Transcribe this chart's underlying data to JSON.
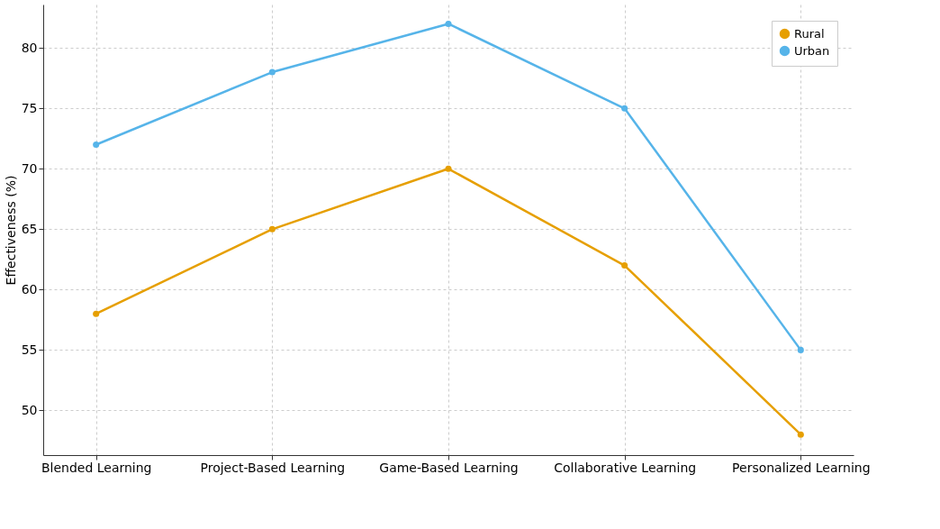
{
  "chart_data": {
    "type": "line",
    "ylabel": "Effectiveness (%)",
    "categories": [
      "Blended Learning",
      "Project-Based Learning",
      "Game-Based Learning",
      "Collaborative Learning",
      "Personalized Learning"
    ],
    "series": [
      {
        "name": "Rural",
        "color": "#e69f00",
        "values": [
          58,
          65,
          70,
          62,
          48
        ]
      },
      {
        "name": "Urban",
        "color": "#56b4e9",
        "values": [
          72,
          78,
          82,
          75,
          55
        ]
      }
    ],
    "ylim": [
      46.3,
      83.6
    ],
    "yticks": [
      50,
      55,
      60,
      65,
      70,
      75,
      80
    ],
    "grid": true,
    "legend": "top right",
    "marker": "circle",
    "line_style": "solid"
  }
}
